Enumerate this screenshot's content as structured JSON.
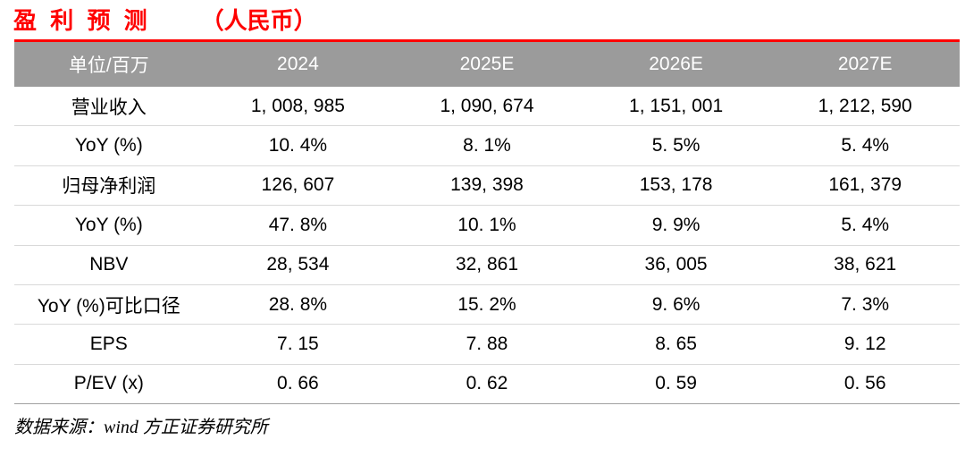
{
  "title": {
    "main": "盈 利 预 测",
    "paren": "（人民币）"
  },
  "colors": {
    "accent_red": "#ff0000",
    "header_bg": "#9b9b9b",
    "header_text": "#ffffff",
    "row_divider": "#d9d9d9",
    "table_bottom_border": "#a0a0a0",
    "body_text": "#000000"
  },
  "table": {
    "columns": [
      "单位/百万",
      "2024",
      "2025E",
      "2026E",
      "2027E"
    ],
    "rows": [
      {
        "label": "营业收入",
        "values": [
          "1, 008, 985",
          "1, 090, 674",
          "1, 151, 001",
          "1, 212, 590"
        ]
      },
      {
        "label": "YoY (%)",
        "values": [
          "10. 4%",
          "8. 1%",
          "5. 5%",
          "5. 4%"
        ]
      },
      {
        "label": "归母净利润",
        "values": [
          "126, 607",
          "139, 398",
          "153, 178",
          "161, 379"
        ]
      },
      {
        "label": "YoY (%)",
        "values": [
          "47. 8%",
          "10. 1%",
          "9. 9%",
          "5. 4%"
        ]
      },
      {
        "label": "NBV",
        "values": [
          "28, 534",
          "32, 861",
          "36, 005",
          "38, 621"
        ]
      },
      {
        "label": "YoY (%)可比口径",
        "values": [
          "28. 8%",
          "15. 2%",
          "9. 6%",
          "7. 3%"
        ]
      },
      {
        "label": "EPS",
        "values": [
          "7. 15",
          "7. 88",
          "8. 65",
          "9. 12"
        ]
      },
      {
        "label": "P/EV (x)",
        "values": [
          "0. 66",
          "0. 62",
          "0. 59",
          "0. 56"
        ]
      }
    ]
  },
  "footer": {
    "source_note": "数据来源：wind 方正证券研究所"
  }
}
